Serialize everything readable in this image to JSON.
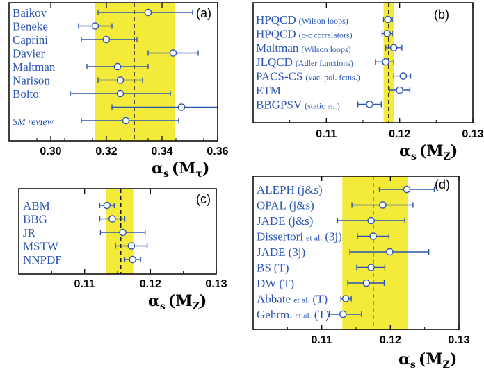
{
  "colors": {
    "band": "#f3ea3a",
    "series": "#2b55b3",
    "frame": "#000000",
    "marker_fill": "#ffffff"
  },
  "chart_data": [
    {
      "id": "a",
      "type": "scatter",
      "panel_tag": "(a)",
      "xlabel": {
        "alpha": "α",
        "sub": "s",
        "arg": "(M",
        "argsub": "τ",
        "close": ")"
      },
      "xlim": [
        0.285,
        0.36
      ],
      "xticks": [
        0.3,
        0.32,
        0.34,
        0.36
      ],
      "xtick_labels": [
        "0.30",
        "0.32",
        "0.34",
        "0.36"
      ],
      "band": [
        0.316,
        0.3445
      ],
      "central": 0.33,
      "points": [
        {
          "label": "Baikov",
          "value": 0.335,
          "err_low": 0.317,
          "err_high": 0.351
        },
        {
          "label": "Beneke",
          "value": 0.316,
          "err_low": 0.31,
          "err_high": 0.322
        },
        {
          "label": "Caprini",
          "value": 0.32,
          "err_low": 0.311,
          "err_high": 0.331
        },
        {
          "label": "Davier",
          "value": 0.344,
          "err_low": 0.335,
          "err_high": 0.353
        },
        {
          "label": "Maltman",
          "value": 0.324,
          "err_low": 0.313,
          "err_high": 0.335
        },
        {
          "label": "Narison",
          "value": 0.325,
          "err_low": 0.317,
          "err_high": 0.333
        },
        {
          "label": "Boito",
          "value": 0.325,
          "err_low": 0.307,
          "err_high": 0.343
        },
        {
          "label": "",
          "value": 0.347,
          "err_low": 0.322,
          "err_high": 0.372
        },
        {
          "label": "SM review",
          "value": 0.327,
          "err_low": 0.311,
          "err_high": 0.346,
          "italic": true
        }
      ]
    },
    {
      "id": "b",
      "type": "scatter",
      "panel_tag": "(b)",
      "xlabel": {
        "alpha": "α",
        "sub": "s",
        "arg": "(M",
        "argsub": "Z",
        "close": ")"
      },
      "xlim": [
        0.1,
        0.13
      ],
      "xticks": [
        0.11,
        0.12,
        0.13
      ],
      "xtick_labels": [
        "0.11",
        "0.12",
        "0.13"
      ],
      "band": [
        0.1178,
        0.1192
      ],
      "central": 0.1185,
      "points": [
        {
          "label": "HPQCD",
          "note": "(Wilson loops)",
          "value": 0.1184,
          "err_low": 0.1178,
          "err_high": 0.119
        },
        {
          "label": "HPQCD",
          "note": "(c-c correlators)",
          "value": 0.1183,
          "err_low": 0.1176,
          "err_high": 0.119
        },
        {
          "label": "Maltman",
          "note": "(Wilson loops)",
          "value": 0.1192,
          "err_low": 0.1181,
          "err_high": 0.1203
        },
        {
          "label": "JLQCD",
          "note": "(Adler functions)",
          "value": 0.1181,
          "err_low": 0.1167,
          "err_high": 0.1192
        },
        {
          "label": "PACS-CS",
          "note": "(vac. pol. fctns.)",
          "value": 0.1205,
          "err_low": 0.1192,
          "err_high": 0.1215
        },
        {
          "label": "ETM",
          "note": "",
          "value": 0.12,
          "err_low": 0.1186,
          "err_high": 0.1214
        },
        {
          "label": "BBGPSV",
          "note": "(static en.)",
          "value": 0.1159,
          "err_low": 0.1143,
          "err_high": 0.1175
        }
      ]
    },
    {
      "id": "c",
      "type": "scatter",
      "panel_tag": "(c)",
      "xlabel": {
        "alpha": "α",
        "sub": "s",
        "arg": "(M",
        "argsub": "Z",
        "close": ")"
      },
      "xlim": [
        0.1,
        0.13
      ],
      "xticks": [
        0.11,
        0.12,
        0.13
      ],
      "xtick_labels": [
        "0.11",
        "0.12",
        "0.13"
      ],
      "band": [
        0.1133,
        0.1174
      ],
      "central": 0.1155,
      "points": [
        {
          "label": "ABM",
          "value": 0.1134,
          "err_low": 0.1123,
          "err_high": 0.1145
        },
        {
          "label": "BBG",
          "value": 0.1142,
          "err_low": 0.1123,
          "err_high": 0.1161
        },
        {
          "label": "JR",
          "value": 0.1158,
          "err_low": 0.1124,
          "err_high": 0.1192
        },
        {
          "label": "MSTW",
          "value": 0.1171,
          "err_low": 0.1147,
          "err_high": 0.1195
        },
        {
          "label": "NNPDF",
          "value": 0.1173,
          "err_low": 0.1161,
          "err_high": 0.1185
        }
      ]
    },
    {
      "id": "d",
      "type": "scatter",
      "panel_tag": "(d)",
      "xlabel": {
        "alpha": "α",
        "sub": "s",
        "arg": "(M",
        "argsub": "Z",
        "close": ")"
      },
      "xlim": [
        0.1,
        0.13
      ],
      "xticks": [
        0.11,
        0.12,
        0.13
      ],
      "xtick_labels": [
        "0.11",
        "0.12",
        "0.13"
      ],
      "band": [
        0.113,
        0.1225
      ],
      "central": 0.1175,
      "points": [
        {
          "label": "ALEPH",
          "note": "(j&s)",
          "note_big": true,
          "value": 0.1224,
          "err_low": 0.1184,
          "err_high": 0.1264
        },
        {
          "label": "OPAL",
          "note": "(j&s)",
          "note_big": true,
          "value": 0.1189,
          "err_low": 0.1144,
          "err_high": 0.1233
        },
        {
          "label": "JADE",
          "note": "(j&s)",
          "note_big": true,
          "value": 0.1172,
          "err_low": 0.1123,
          "err_high": 0.1221
        },
        {
          "label": "Dissertori",
          "note": "et al.",
          "tail": "(3j)",
          "value": 0.1175,
          "err_low": 0.1152,
          "err_high": 0.1198
        },
        {
          "label": "JADE",
          "note": "(3j)",
          "note_big": true,
          "value": 0.1199,
          "err_low": 0.1141,
          "err_high": 0.1256
        },
        {
          "label": "BS",
          "note": "(T)",
          "note_big": true,
          "value": 0.1172,
          "err_low": 0.1151,
          "err_high": 0.1192
        },
        {
          "label": "DW",
          "note": "(T)",
          "note_big": true,
          "value": 0.1165,
          "err_low": 0.1138,
          "err_high": 0.1191
        },
        {
          "label": "Abbate",
          "note": "et al.",
          "tail": "(T)",
          "value": 0.1135,
          "err_low": 0.1128,
          "err_high": 0.1143
        },
        {
          "label": "Gehrm.",
          "note": "et al.",
          "tail": "(T)",
          "value": 0.1131,
          "err_low": 0.1111,
          "err_high": 0.1158
        }
      ]
    }
  ]
}
